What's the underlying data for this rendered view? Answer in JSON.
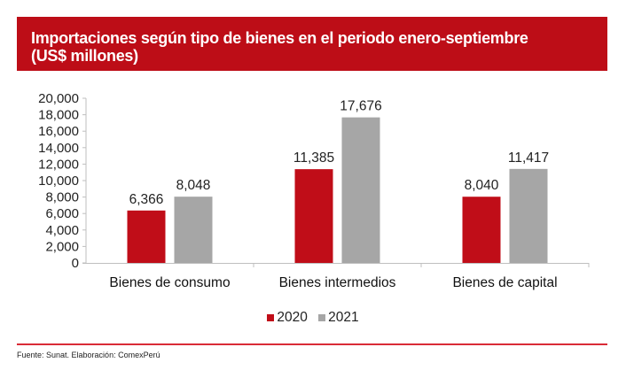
{
  "title_lines": [
    "Importaciones según tipo de bienes en el periodo enero-septiembre",
    "(US$ millones)"
  ],
  "source": "Fuente: Sunat. Elaboración:  ComexPerú",
  "colors": {
    "header_bg": "#bd0d17",
    "series_2020": "#c00d18",
    "series_2021": "#a6a6a6",
    "rule": "#d92b37"
  },
  "chart_data": {
    "type": "bar",
    "title": "Importaciones según tipo de bienes en el periodo enero-septiembre (US$ millones)",
    "xlabel": "",
    "ylabel": "",
    "categories": [
      "Bienes de consumo",
      "Bienes intermedios",
      "Bienes de capital"
    ],
    "series": [
      {
        "name": "2020",
        "color": "#c00d18",
        "values": [
          6366,
          11385,
          8040
        ],
        "labels": [
          "6,366",
          "11,385",
          "8,040"
        ]
      },
      {
        "name": "2021",
        "color": "#a6a6a6",
        "values": [
          8048,
          17676,
          11417
        ],
        "labels": [
          "8,048",
          "17,676",
          "11,417"
        ]
      }
    ],
    "ylim": [
      0,
      20000
    ],
    "yticks": [
      0,
      2000,
      4000,
      6000,
      8000,
      10000,
      12000,
      14000,
      16000,
      18000,
      20000
    ],
    "ytick_labels": [
      "0",
      "2,000",
      "4,000",
      "6,000",
      "8,000",
      "10,000",
      "12,000",
      "14,000",
      "16,000",
      "18,000",
      "20,000"
    ],
    "grid": false,
    "legend": "bottom-center"
  }
}
